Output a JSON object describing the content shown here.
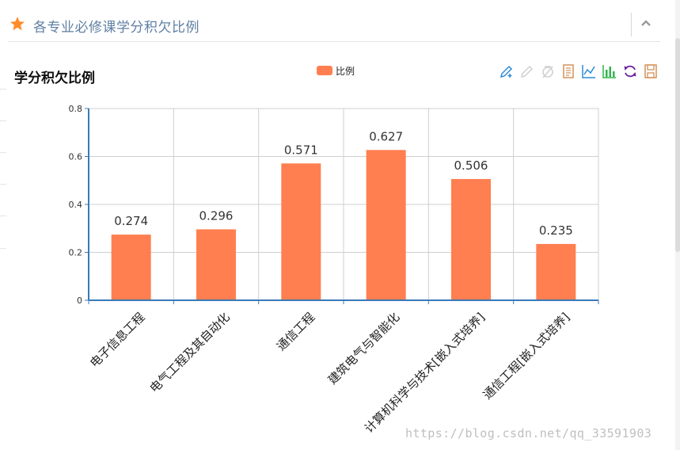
{
  "panel": {
    "title": "各专业必修课学分积欠比例"
  },
  "chart_title": "学分积欠比例",
  "watermark": "https://blog.csdn.net/qq_33591903",
  "icons": {
    "header": "star-icon",
    "collapse": "chevron-up-icon",
    "toolbox": [
      "mark-icon",
      "mark-undo-icon",
      "mark-clear-icon",
      "data-view-icon",
      "line-chart-icon",
      "bar-chart-icon",
      "restore-icon",
      "save-image-icon"
    ]
  },
  "colors": {
    "bar": "#ff7f50",
    "axis": "#3a7ab8",
    "title_blue": "#5f7fa3",
    "star": "#ff8c2a"
  },
  "chart_data": {
    "type": "bar",
    "title": "学分积欠比例",
    "categories": [
      "电子信息工程",
      "电气工程及其自动化",
      "通信工程",
      "建筑电气与智能化",
      "计算机科学与技术[嵌入式培养]",
      "通信工程[嵌入式培养]"
    ],
    "series": [
      {
        "name": "比例",
        "values": [
          0.274,
          0.296,
          0.571,
          0.627,
          0.506,
          0.235
        ],
        "labels": [
          "0.274",
          "0.296",
          "0.571",
          "0.627",
          "0.506",
          "0.235"
        ]
      }
    ],
    "ylim": [
      0,
      0.8
    ],
    "yticks": [
      "0",
      "0.2",
      "0.4",
      "0.6",
      "0.8"
    ],
    "grid": true,
    "legend": "top-center"
  }
}
